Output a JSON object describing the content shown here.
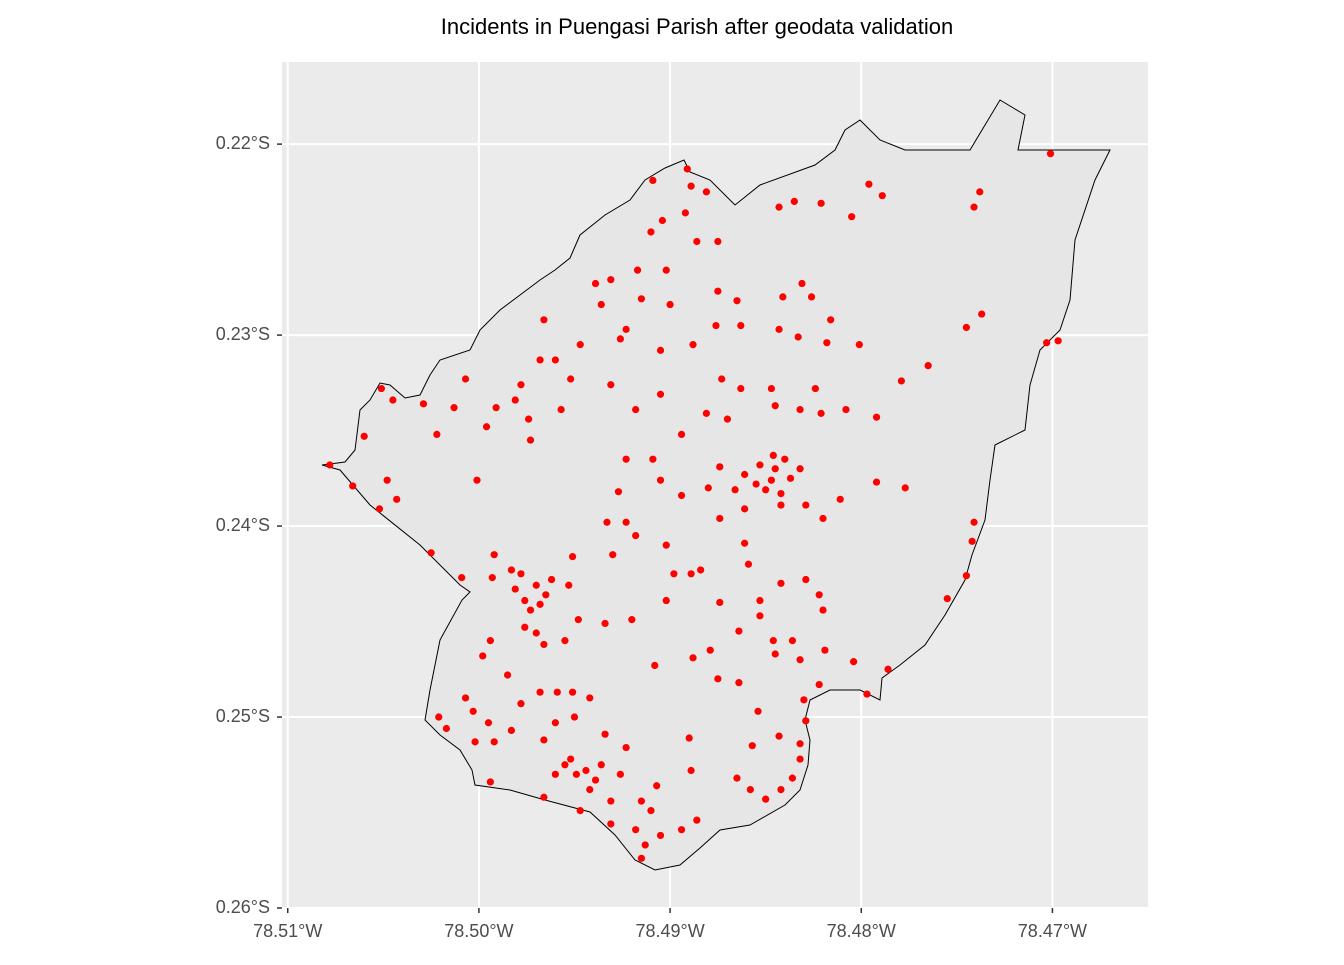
{
  "chart_data": {
    "type": "scatter",
    "title": "Incidents in Puengasi Parish after geodata validation",
    "color": "#ff0000",
    "grid": true,
    "xlim": [
      -78.5103,
      -78.465
    ],
    "ylim": [
      -0.26,
      -0.2157
    ],
    "xticks": [
      {
        "value": -78.51,
        "label": "78.51°W"
      },
      {
        "value": -78.5,
        "label": "78.50°W"
      },
      {
        "value": -78.49,
        "label": "78.49°W"
      },
      {
        "value": -78.48,
        "label": "78.48°W"
      },
      {
        "value": -78.47,
        "label": "78.47°W"
      }
    ],
    "yticks": [
      {
        "value": -0.22,
        "label": "0.22°S"
      },
      {
        "value": -0.23,
        "label": "0.23°S"
      },
      {
        "value": -0.24,
        "label": "0.24°S"
      },
      {
        "value": -0.25,
        "label": "0.25°S"
      },
      {
        "value": -0.26,
        "label": "0.26°S"
      }
    ],
    "x": [
      -78.4701,
      -78.4738,
      -78.4741,
      -78.4796,
      -78.4789,
      -78.4805,
      -78.4821,
      -78.4843,
      -78.4835,
      -78.4909,
      -78.4891,
      -78.4889,
      -78.4881,
      -78.4892,
      -78.4904,
      -78.491,
      -78.4886,
      -78.4875,
      -78.4902,
      -78.4917,
      -78.4931,
      -78.4939,
      -78.4915,
      -78.49,
      -78.4936,
      -78.4875,
      -78.4865,
      -78.4841,
      -78.4831,
      -78.4826,
      -78.4843,
      -78.4833,
      -78.4816,
      -78.4801,
      -78.4818,
      -78.4863,
      -78.4876,
      -78.4888,
      -78.4905,
      -78.4926,
      -78.4923,
      -78.4947,
      -78.4966,
      -78.4968,
      -78.4978,
      -78.4981,
      -78.4991,
      -78.4974,
      -78.4973,
      -78.4996,
      -78.5007,
      -78.5013,
      -78.5022,
      -78.5029,
      -78.5045,
      -78.5051,
      -78.506,
      -78.5078,
      -78.5066,
      -78.5048,
      -78.5043,
      -78.5052,
      -78.5025,
      -78.5009,
      -78.5001,
      -78.496,
      -78.4952,
      -78.4957,
      -78.4931,
      -78.4918,
      -78.4905,
      -78.4894,
      -78.4881,
      -78.4873,
      -78.4863,
      -78.487,
      -78.4847,
      -78.4845,
      -78.4832,
      -78.4821,
      -78.4808,
      -78.4792,
      -78.4824,
      -78.4779,
      -78.4765,
      -78.4745,
      -78.4737,
      -78.4703,
      -78.4697,
      -78.4853,
      -78.4845,
      -78.484,
      -78.4847,
      -78.4855,
      -78.4837,
      -78.485,
      -78.4861,
      -78.4842,
      -78.4832,
      -78.4846,
      -78.4874,
      -78.4866,
      -78.4905,
      -78.4909,
      -78.4923,
      -78.4927,
      -78.4894,
      -78.488,
      -78.4861,
      -78.4874,
      -78.4842,
      -78.4829,
      -78.482,
      -78.4811,
      -78.4792,
      -78.4777,
      -78.4741,
      -78.4742,
      -78.4745,
      -78.4755,
      -78.4786,
      -78.4978,
      -78.497,
      -78.4965,
      -78.4976,
      -78.4968,
      -78.4981,
      -78.4962,
      -78.4973,
      -78.4983,
      -78.4992,
      -78.4993,
      -78.4951,
      -78.4953,
      -78.4933,
      -78.4923,
      -78.493,
      -78.4918,
      -78.4902,
      -78.4898,
      -78.4889,
      -78.4884,
      -78.4902,
      -78.4874,
      -78.4861,
      -78.4859,
      -78.4853,
      -78.4853,
      -78.4864,
      -78.4846,
      -78.4842,
      -78.4829,
      -78.4822,
      -78.482,
      -78.4836,
      -78.4845,
      -78.4832,
      -78.4819,
      -78.4804,
      -78.4822,
      -78.483,
      -78.4797,
      -78.4879,
      -78.4888,
      -78.4875,
      -78.4864,
      -78.4908,
      -78.492,
      -78.4934,
      -78.4948,
      -78.4955,
      -78.497,
      -78.4976,
      -78.4994,
      -78.4998,
      -78.4985,
      -78.4966,
      -78.5007,
      -78.5003,
      -78.5021,
      -78.5017,
      -78.4995,
      -78.4983,
      -78.4992,
      -78.5002,
      -78.4978,
      -78.4968,
      -78.4959,
      -78.4951,
      -78.4942,
      -78.495,
      -78.496,
      -78.4966,
      -78.4952,
      -78.4944,
      -78.4939,
      -78.4949,
      -78.4955,
      -78.4936,
      -78.4942,
      -78.496,
      -78.4947,
      -78.4966,
      -78.4931,
      -78.4926,
      -78.4923,
      -78.4934,
      -78.4915,
      -78.491,
      -78.4907,
      -78.4931,
      -78.4918,
      -78.4913,
      -78.4905,
      -78.4915,
      -78.4894,
      -78.4886,
      -78.4889,
      -78.489,
      -78.4865,
      -78.4857,
      -78.4854,
      -78.4843,
      -78.4832,
      -78.4829,
      -78.4832,
      -78.4836,
      -78.4842,
      -78.485,
      -78.4858,
      -78.4994
    ],
    "y": [
      -0.2205,
      -0.2225,
      -0.2233,
      -0.2221,
      -0.2227,
      -0.2238,
      -0.2231,
      -0.2233,
      -0.223,
      -0.2219,
      -0.2213,
      -0.2222,
      -0.2225,
      -0.2236,
      -0.224,
      -0.2246,
      -0.2251,
      -0.2251,
      -0.2266,
      -0.2266,
      -0.2271,
      -0.2273,
      -0.2281,
      -0.2284,
      -0.2284,
      -0.2277,
      -0.2282,
      -0.228,
      -0.2273,
      -0.228,
      -0.2297,
      -0.2301,
      -0.2292,
      -0.2305,
      -0.2304,
      -0.2295,
      -0.2295,
      -0.2305,
      -0.2308,
      -0.2302,
      -0.2297,
      -0.2305,
      -0.2292,
      -0.2313,
      -0.2326,
      -0.2334,
      -0.2338,
      -0.2344,
      -0.2355,
      -0.2348,
      -0.2323,
      -0.2338,
      -0.2352,
      -0.2336,
      -0.2334,
      -0.2328,
      -0.2353,
      -0.2368,
      -0.2379,
      -0.2376,
      -0.2386,
      -0.2391,
      -0.2414,
      -0.2427,
      -0.2376,
      -0.2313,
      -0.2323,
      -0.2339,
      -0.2326,
      -0.2339,
      -0.2331,
      -0.2352,
      -0.2341,
      -0.2323,
      -0.2328,
      -0.2344,
      -0.2328,
      -0.2337,
      -0.2339,
      -0.2341,
      -0.2339,
      -0.2343,
      -0.2328,
      -0.2324,
      -0.2316,
      -0.2296,
      -0.2289,
      -0.2304,
      -0.2303,
      -0.2368,
      -0.237,
      -0.2365,
      -0.2376,
      -0.2378,
      -0.2375,
      -0.2381,
      -0.2373,
      -0.2383,
      -0.237,
      -0.2363,
      -0.2369,
      -0.2381,
      -0.2376,
      -0.2365,
      -0.2365,
      -0.2382,
      -0.2384,
      -0.238,
      -0.2391,
      -0.2396,
      -0.2389,
      -0.2389,
      -0.2396,
      -0.2386,
      -0.2377,
      -0.238,
      -0.2398,
      -0.2408,
      -0.2426,
      -0.2438,
      -0.2475,
      -0.2425,
      -0.2431,
      -0.2436,
      -0.2439,
      -0.2441,
      -0.2433,
      -0.2428,
      -0.2444,
      -0.2423,
      -0.2415,
      -0.2427,
      -0.2416,
      -0.2431,
      -0.2398,
      -0.2398,
      -0.2415,
      -0.2405,
      -0.241,
      -0.2425,
      -0.2425,
      -0.2423,
      -0.2439,
      -0.244,
      -0.2409,
      -0.242,
      -0.2439,
      -0.2447,
      -0.2455,
      -0.246,
      -0.243,
      -0.2428,
      -0.2436,
      -0.2444,
      -0.246,
      -0.2467,
      -0.247,
      -0.2465,
      -0.2471,
      -0.2483,
      -0.2491,
      -0.2488,
      -0.2465,
      -0.2469,
      -0.248,
      -0.2482,
      -0.2473,
      -0.2449,
      -0.2451,
      -0.2449,
      -0.246,
      -0.2456,
      -0.2453,
      -0.246,
      -0.2468,
      -0.2478,
      -0.2462,
      -0.249,
      -0.2497,
      -0.25,
      -0.2506,
      -0.2503,
      -0.2507,
      -0.2513,
      -0.2513,
      -0.2493,
      -0.2487,
      -0.2487,
      -0.2487,
      -0.249,
      -0.25,
      -0.2503,
      -0.2512,
      -0.2522,
      -0.2528,
      -0.2533,
      -0.253,
      -0.2525,
      -0.2525,
      -0.2538,
      -0.253,
      -0.2549,
      -0.2542,
      -0.2544,
      -0.253,
      -0.2516,
      -0.2509,
      -0.2544,
      -0.2549,
      -0.2536,
      -0.2556,
      -0.2559,
      -0.2567,
      -0.2562,
      -0.2574,
      -0.2559,
      -0.2554,
      -0.2528,
      -0.2511,
      -0.2532,
      -0.2515,
      -0.2497,
      -0.251,
      -0.2514,
      -0.2502,
      -0.2522,
      -0.2532,
      -0.2538,
      -0.2543,
      -0.2538,
      -0.2534
    ]
  }
}
